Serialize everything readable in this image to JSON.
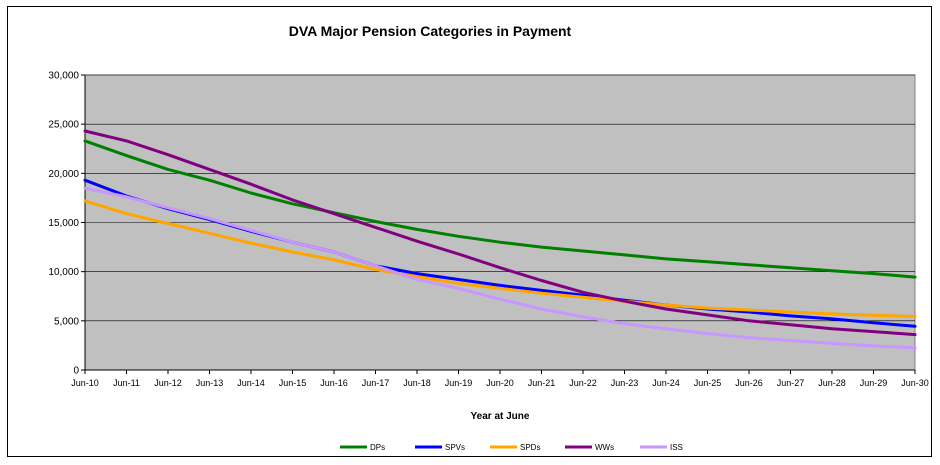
{
  "chart_data": {
    "type": "line",
    "title": "DVA Major Pension Categories in Payment",
    "xlabel": "Year at June",
    "ylabel": "",
    "ylim": [
      0,
      30000
    ],
    "yticks": [
      0,
      5000,
      10000,
      15000,
      20000,
      25000,
      30000
    ],
    "ytick_labels": [
      "0",
      "5,000",
      "10,000",
      "15,000",
      "20,000",
      "25,000",
      "30,000"
    ],
    "categories": [
      "Jun-10",
      "Jun-11",
      "Jun-12",
      "Jun-13",
      "Jun-14",
      "Jun-15",
      "Jun-16",
      "Jun-17",
      "Jun-18",
      "Jun-19",
      "Jun-20",
      "Jun-21",
      "Jun-22",
      "Jun-23",
      "Jun-24",
      "Jun-25",
      "Jun-26",
      "Jun-27",
      "Jun-28",
      "Jun-29",
      "Jun-30"
    ],
    "grid": true,
    "legend_position": "bottom",
    "plot_background": "#c0c0c0",
    "series": [
      {
        "name": "DPs",
        "color": "#008000",
        "values": [
          23300,
          21800,
          20400,
          19300,
          18000,
          16900,
          16000,
          15100,
          14300,
          13600,
          13000,
          12500,
          12100,
          11700,
          11300,
          11000,
          10700,
          10400,
          10100,
          9800,
          9450
        ]
      },
      {
        "name": "SPVs",
        "color": "#0000ff",
        "values": [
          19300,
          17700,
          16400,
          15300,
          14100,
          13000,
          12000,
          10600,
          9800,
          9200,
          8600,
          8100,
          7600,
          7100,
          6600,
          6200,
          5900,
          5500,
          5200,
          4800,
          4450
        ]
      },
      {
        "name": "SPDs",
        "color": "#ffa500",
        "values": [
          17200,
          15900,
          14900,
          13900,
          12900,
          12000,
          11200,
          10200,
          9500,
          8800,
          8300,
          7800,
          7400,
          7000,
          6600,
          6300,
          6100,
          5900,
          5700,
          5550,
          5450
        ]
      },
      {
        "name": "WWs",
        "color": "#800080",
        "values": [
          24300,
          23300,
          21900,
          20400,
          18900,
          17300,
          15900,
          14500,
          13100,
          11800,
          10400,
          9100,
          7900,
          7000,
          6200,
          5600,
          5000,
          4600,
          4200,
          3900,
          3600
        ]
      },
      {
        "name": "ISS",
        "color": "#c896ff",
        "values": [
          18500,
          17600,
          16500,
          15400,
          14200,
          13000,
          12000,
          10600,
          9200,
          8300,
          7200,
          6200,
          5400,
          4700,
          4200,
          3700,
          3300,
          3000,
          2700,
          2450,
          2250
        ]
      }
    ]
  }
}
